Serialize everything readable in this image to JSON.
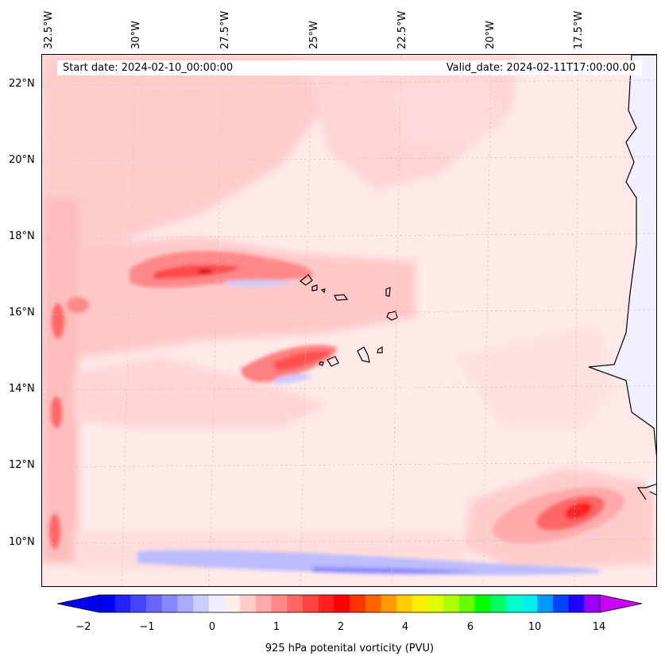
{
  "header": {
    "start_date": "Start date: 2024-02-10_00:00:00",
    "valid_date": "Valid_date: 2024-02-11T17:00:00.00"
  },
  "lon_labels": [
    "32.5°W",
    "30°W",
    "27.5°W",
    "25°W",
    "22.5°W",
    "20°W",
    "17.5°W"
  ],
  "lat_labels": [
    "22°N",
    "20°N",
    "18°N",
    "16°N",
    "14°N",
    "12°N",
    "10°N"
  ],
  "colorbar": {
    "title": "925 hPa potenital vorticity (PVU)",
    "tick_labels": [
      "−2",
      "−1",
      "0",
      "1",
      "2",
      "4",
      "6",
      "10",
      "14"
    ],
    "under_color": "#0000ff",
    "over_color": "#cc00ff",
    "colors": [
      "#0000ff",
      "#2222ff",
      "#4444ff",
      "#6666ff",
      "#8888ff",
      "#aaaaff",
      "#ccccff",
      "#eeeeff",
      "#ffeeee",
      "#ffcccc",
      "#ffaaaa",
      "#ff8888",
      "#ff6666",
      "#ff4444",
      "#ff2222",
      "#ff0000",
      "#ff3300",
      "#ff6600",
      "#ff9900",
      "#ffcc00",
      "#ffee00",
      "#ddff00",
      "#aaff00",
      "#66ff00",
      "#00ff00",
      "#00ff66",
      "#00ffcc",
      "#00eeee",
      "#0099ff",
      "#0044ff",
      "#2200ff",
      "#9900ff"
    ]
  },
  "colors": {
    "land": "#f0f0ff",
    "background": "#ffe9e9",
    "coast": "#000000",
    "grid": "#c8c8c8"
  }
}
